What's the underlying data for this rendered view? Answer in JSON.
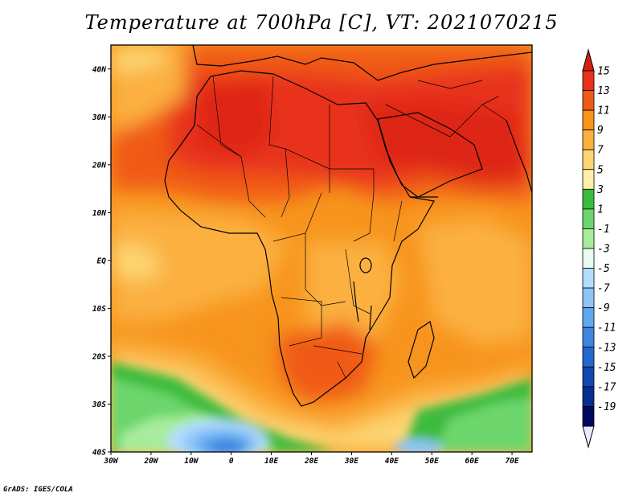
{
  "title": "Temperature at 700hPa [C], VT: 2021070215",
  "credit": "GrADS: IGES/COLA",
  "map": {
    "lon_range": [
      -30,
      75
    ],
    "lat_range": [
      -40,
      45
    ],
    "x_ticks": [
      "30W",
      "20W",
      "10W",
      "0",
      "10E",
      "20E",
      "30E",
      "40E",
      "50E",
      "60E",
      "70E"
    ],
    "x_tick_values": [
      -30,
      -20,
      -10,
      0,
      10,
      20,
      30,
      40,
      50,
      60,
      70
    ],
    "y_ticks": [
      "40S",
      "30S",
      "20S",
      "10S",
      "EQ",
      "10N",
      "20N",
      "30N",
      "40N"
    ],
    "y_tick_values": [
      -40,
      -30,
      -20,
      -10,
      0,
      10,
      20,
      30,
      40
    ]
  },
  "colorbar": {
    "labels": [
      "15",
      "13",
      "11",
      "9",
      "7",
      "5",
      "3",
      "1",
      "-1",
      "-3",
      "-5",
      "-7",
      "-9",
      "-11",
      "-13",
      "-15",
      "-17",
      "-19"
    ],
    "colors": [
      "#e8301a",
      "#f05a14",
      "#f7941d",
      "#fbb040",
      "#fdd672",
      "#fff0a8",
      "#3dbb3d",
      "#6cd66c",
      "#a6ec9c",
      "#e8fbf0",
      "#b4dcff",
      "#8ec4f8",
      "#5ea8ee",
      "#3c86e0",
      "#2566d0",
      "#1246b0",
      "#0a2c8c",
      "#000a60"
    ],
    "top_triangle_color": "#d42010",
    "bottom_triangle_color": "#ece8ff"
  }
}
